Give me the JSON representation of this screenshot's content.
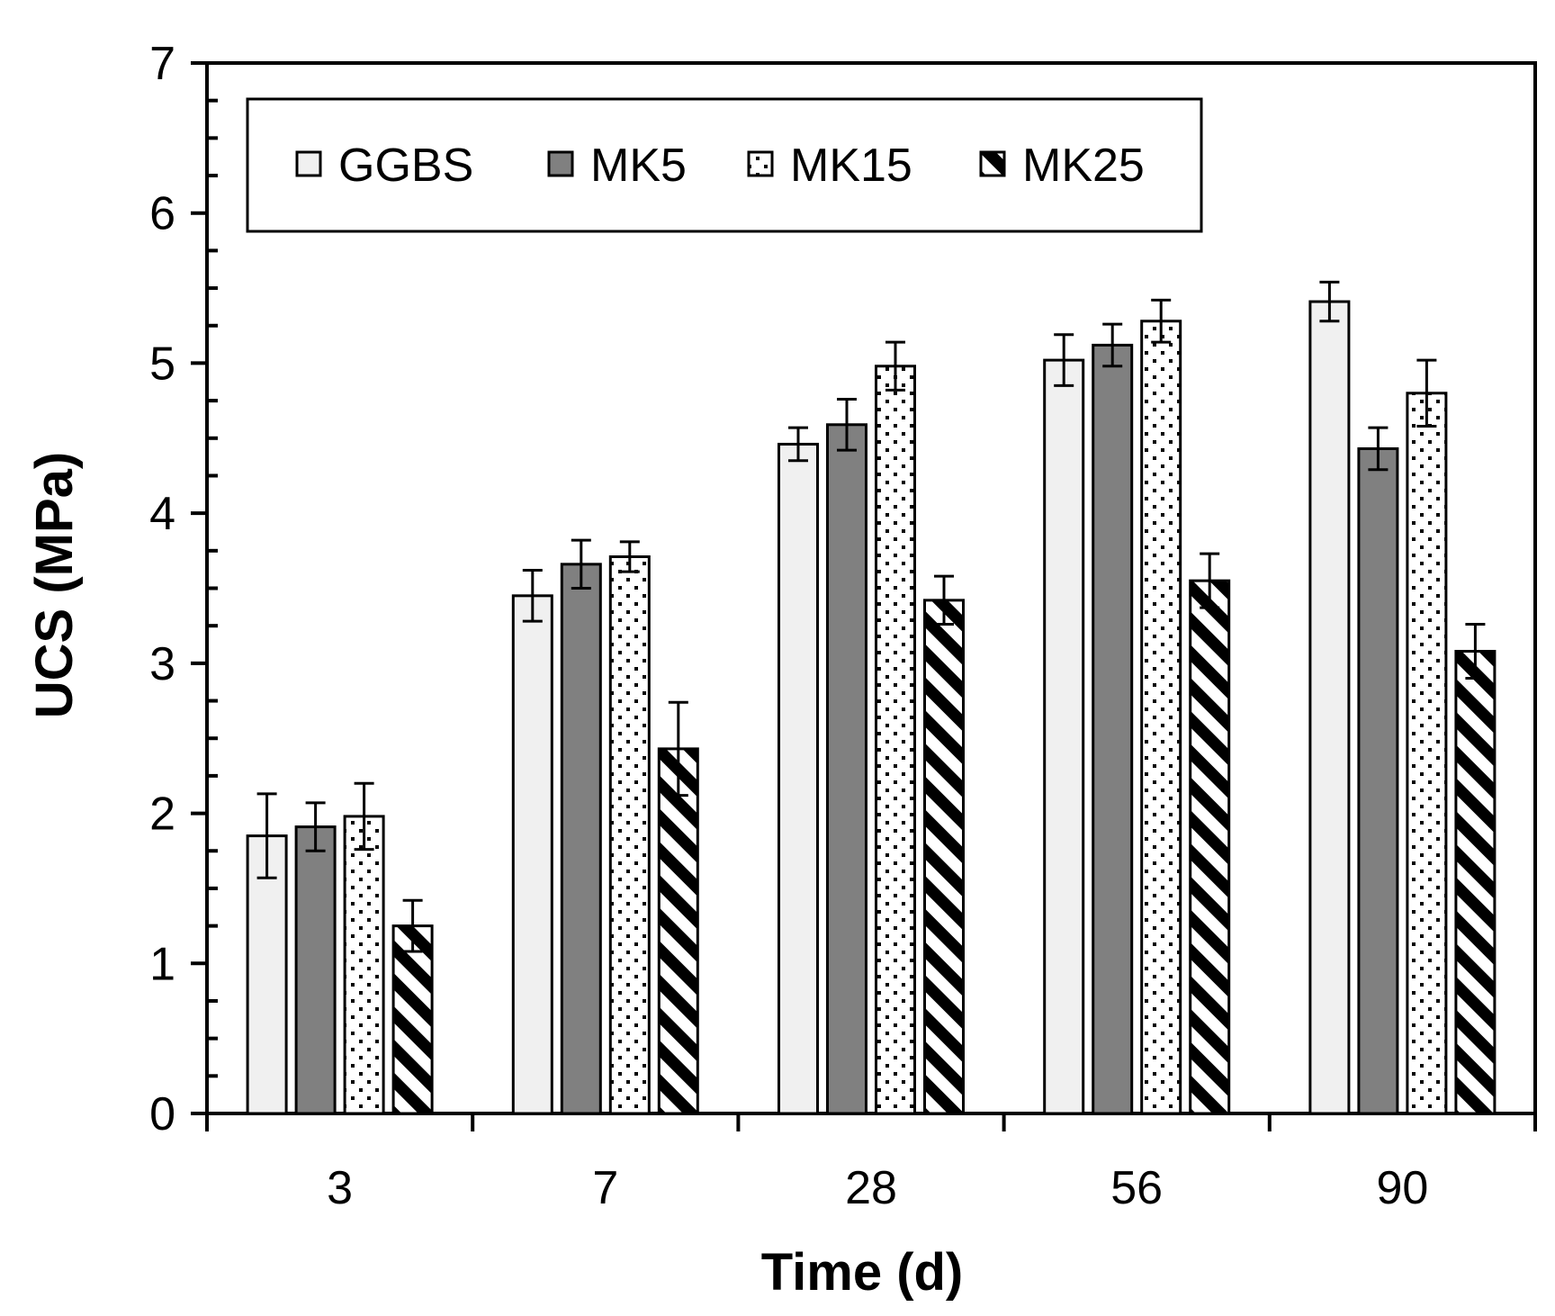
{
  "chart_data": {
    "type": "bar",
    "title": "",
    "xlabel": "Time (d)",
    "ylabel": "UCS (MPa)",
    "ylim": [
      0,
      7
    ],
    "yticks": [
      "0",
      "1",
      "2",
      "3",
      "4",
      "5",
      "6",
      "7"
    ],
    "categories": [
      "3",
      "7",
      "28",
      "56",
      "90"
    ],
    "legend_position": "top",
    "grid": false,
    "series": [
      {
        "name": "GGBS",
        "pattern": "light-fill",
        "color": "#f0f0f0",
        "values": [
          1.85,
          3.45,
          4.46,
          5.02,
          5.41
        ],
        "errors": [
          0.28,
          0.17,
          0.11,
          0.17,
          0.13
        ]
      },
      {
        "name": "MK5",
        "pattern": "solid-gray",
        "color": "#808080",
        "values": [
          1.91,
          3.66,
          4.59,
          5.12,
          4.43
        ],
        "errors": [
          0.16,
          0.16,
          0.17,
          0.14,
          0.14
        ]
      },
      {
        "name": "MK15",
        "pattern": "dotted",
        "color": "#ffffff",
        "values": [
          1.98,
          3.71,
          4.98,
          5.28,
          4.8
        ],
        "errors": [
          0.22,
          0.1,
          0.16,
          0.14,
          0.22
        ]
      },
      {
        "name": "MK25",
        "pattern": "diagonal-stripes",
        "color": "#000000",
        "values": [
          1.25,
          2.43,
          3.42,
          3.55,
          3.08
        ],
        "errors": [
          0.17,
          0.31,
          0.16,
          0.18,
          0.18
        ]
      }
    ]
  }
}
